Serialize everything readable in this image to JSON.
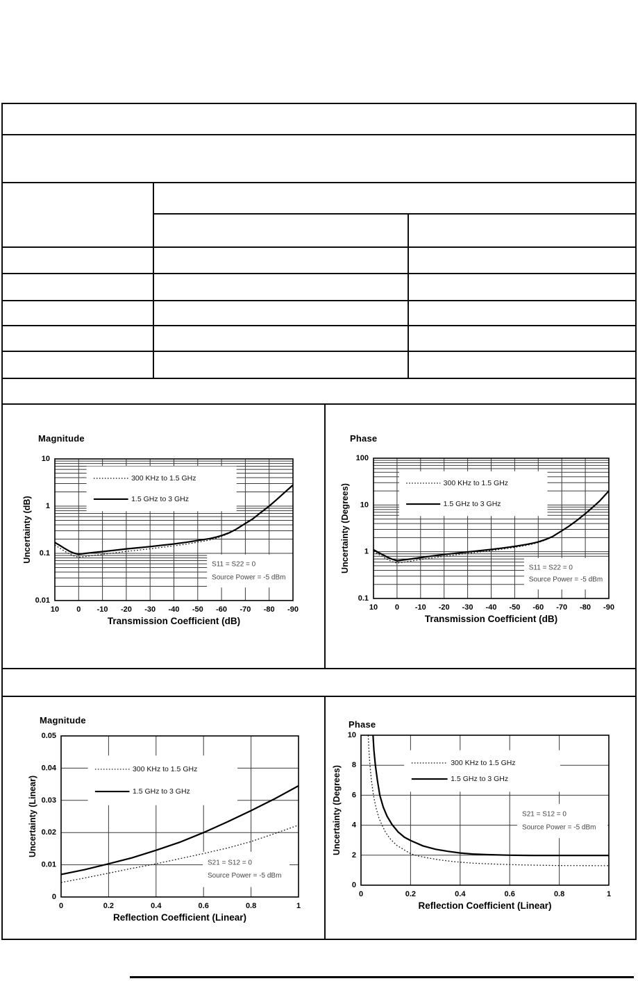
{
  "page": {
    "background": "#ffffff",
    "ink_color": "#000000",
    "grid_color": "#3a3a3a",
    "annotation_color": "#454545"
  },
  "table": {
    "description": "bordered specification table at top of page, all cells blank",
    "all_cells_blank": true,
    "border_color": "#0d0d0d"
  },
  "chart_data": [
    {
      "type": "line",
      "name": "transmission-magnitude",
      "title": "Magnitude",
      "xlabel": "Transmission Coefficient (dB)",
      "ylabel": "Uncertainty (dB)",
      "xscale": "linear",
      "yscale": "log",
      "xlim": [
        10,
        -90
      ],
      "ylim": [
        0.01,
        10
      ],
      "xticks": [
        10,
        0,
        -10,
        -20,
        -30,
        -40,
        -50,
        -60,
        -70,
        -80,
        -90
      ],
      "xtick_labels": [
        "10",
        "0",
        "-10",
        "-20",
        "-30",
        "-40",
        "-50",
        "-60",
        "-70",
        "-80",
        "-90"
      ],
      "yticks": [
        0.01,
        0.1,
        1,
        10
      ],
      "ytick_labels": [
        "0.01",
        "0.1",
        "1",
        "10"
      ],
      "grid": true,
      "legend": {
        "x": 0.163,
        "y1": 0.137,
        "y2": 0.284,
        "position": "upper left"
      },
      "annotation": {
        "lines": [
          "S11 = S22 = 0",
          "Source Power = -5 dBm"
        ],
        "x": 0.659,
        "y1": 0.745,
        "y2": 0.838
      },
      "series": [
        {
          "name": "300 KHz to 1.5 GHz",
          "style": "dotted",
          "x": [
            10,
            8,
            6,
            4,
            2,
            0,
            -3,
            -6,
            -10,
            -15,
            -20,
            -25,
            -30,
            -35,
            -40,
            -45,
            -50,
            -55,
            -58,
            -60,
            -63,
            -66,
            -70,
            -73,
            -76,
            -80,
            -83,
            -86,
            -90
          ],
          "y": [
            0.15,
            0.13,
            0.112,
            0.098,
            0.088,
            0.083,
            0.086,
            0.09,
            0.095,
            0.102,
            0.11,
            0.117,
            0.125,
            0.134,
            0.144,
            0.156,
            0.172,
            0.191,
            0.21,
            0.228,
            0.263,
            0.315,
            0.425,
            0.528,
            0.7,
            1.0,
            1.35,
            1.85,
            2.8
          ]
        },
        {
          "name": "1.5 GHz to 3 GHz",
          "style": "solid",
          "x": [
            10,
            8,
            6,
            4,
            2,
            0,
            -3,
            -6,
            -10,
            -15,
            -20,
            -25,
            -30,
            -35,
            -40,
            -45,
            -50,
            -55,
            -58,
            -60,
            -63,
            -66,
            -70,
            -73,
            -76,
            -80,
            -83,
            -86,
            -90
          ],
          "y": [
            0.17,
            0.148,
            0.128,
            0.112,
            0.101,
            0.096,
            0.1,
            0.104,
            0.109,
            0.116,
            0.124,
            0.131,
            0.139,
            0.148,
            0.158,
            0.171,
            0.187,
            0.205,
            0.222,
            0.238,
            0.27,
            0.32,
            0.43,
            0.53,
            0.7,
            1.0,
            1.35,
            1.85,
            2.8
          ]
        }
      ]
    },
    {
      "type": "line",
      "name": "transmission-phase",
      "title": "Phase",
      "xlabel": "Transmission Coefficient (dB)",
      "ylabel": "Uncertainty (Degrees)",
      "xscale": "linear",
      "yscale": "log",
      "xlim": [
        10,
        -90
      ],
      "ylim": [
        0.1,
        100
      ],
      "xticks": [
        10,
        0,
        -10,
        -20,
        -30,
        -40,
        -50,
        -60,
        -70,
        -80,
        -90
      ],
      "xtick_labels": [
        "10",
        "0",
        "-10",
        "-20",
        "-30",
        "-40",
        "-50",
        "-60",
        "-70",
        "-80",
        "-90"
      ],
      "yticks": [
        0.1,
        1,
        10,
        100
      ],
      "ytick_labels": [
        "0.1",
        "1",
        "10",
        "100"
      ],
      "grid": true,
      "legend": {
        "x": 0.139,
        "y1": 0.178,
        "y2": 0.327,
        "position": "upper left"
      },
      "annotation": {
        "lines": [
          "S11 = S22 = 0",
          "Source Power = -5 dBm"
        ],
        "x": 0.66,
        "y1": 0.782,
        "y2": 0.866
      },
      "series": [
        {
          "name": "300 KHz to 1.5 GHz",
          "style": "dotted",
          "x": [
            10,
            8,
            6,
            4,
            2,
            0,
            -3,
            -6,
            -10,
            -15,
            -20,
            -25,
            -30,
            -35,
            -40,
            -45,
            -50,
            -55,
            -58,
            -60,
            -63,
            -66,
            -70,
            -73,
            -76,
            -80,
            -83,
            -86,
            -90
          ],
          "y": [
            1.02,
            0.89,
            0.78,
            0.68,
            0.61,
            0.57,
            0.6,
            0.63,
            0.68,
            0.74,
            0.8,
            0.86,
            0.92,
            0.99,
            1.06,
            1.14,
            1.24,
            1.37,
            1.47,
            1.57,
            1.78,
            2.06,
            2.77,
            3.47,
            4.48,
            6.5,
            8.8,
            12.0,
            20.0
          ]
        },
        {
          "name": "1.5 GHz to 3 GHz",
          "style": "solid",
          "x": [
            10,
            8,
            6,
            4,
            2,
            0,
            -3,
            -6,
            -10,
            -15,
            -20,
            -25,
            -30,
            -35,
            -40,
            -45,
            -50,
            -55,
            -58,
            -60,
            -63,
            -66,
            -70,
            -73,
            -76,
            -80,
            -83,
            -86,
            -90
          ],
          "y": [
            1.1,
            0.97,
            0.86,
            0.76,
            0.69,
            0.64,
            0.67,
            0.7,
            0.75,
            0.81,
            0.87,
            0.93,
            0.99,
            1.05,
            1.12,
            1.2,
            1.3,
            1.43,
            1.53,
            1.62,
            1.82,
            2.1,
            2.8,
            3.5,
            4.5,
            6.5,
            8.8,
            12.0,
            20.0
          ]
        }
      ]
    },
    {
      "type": "line",
      "name": "reflection-magnitude",
      "title": "Magnitude",
      "xlabel": "Reflection Coefficient (Linear)",
      "ylabel": "Uncertainty (Linear)",
      "xscale": "linear",
      "yscale": "linear",
      "xlim": [
        0,
        1
      ],
      "ylim": [
        0,
        0.05
      ],
      "xticks": [
        0,
        0.2,
        0.4,
        0.6,
        0.8,
        1
      ],
      "xtick_labels": [
        "0",
        "0.2",
        "0.4",
        "0.6",
        "0.8",
        "1"
      ],
      "yticks": [
        0,
        0.01,
        0.02,
        0.03,
        0.04,
        0.05
      ],
      "ytick_labels": [
        "0",
        "0.01",
        "0.02",
        "0.03",
        "0.04",
        "0.05"
      ],
      "grid": true,
      "legend": {
        "x": 0.143,
        "y1": 0.207,
        "y2": 0.345,
        "position": "upper left"
      },
      "annotation": {
        "lines": [
          "S21 = S12 = 0",
          "Source Power = -5 dBm"
        ],
        "x": 0.617,
        "y1": 0.789,
        "y2": 0.868
      },
      "series": [
        {
          "name": "300 KHz to 1.5 GHz",
          "style": "dotted",
          "x": [
            0,
            0.1,
            0.2,
            0.3,
            0.4,
            0.5,
            0.6,
            0.7,
            0.8,
            0.9,
            1.0
          ],
          "y": [
            0.0045,
            0.0059,
            0.0074,
            0.0089,
            0.0103,
            0.0119,
            0.0135,
            0.0152,
            0.0172,
            0.0197,
            0.0223
          ]
        },
        {
          "name": "1.5 GHz to 3 GHz",
          "style": "solid",
          "x": [
            0,
            0.1,
            0.2,
            0.3,
            0.4,
            0.5,
            0.6,
            0.7,
            0.8,
            0.9,
            1.0
          ],
          "y": [
            0.007,
            0.0085,
            0.0103,
            0.0122,
            0.0145,
            0.017,
            0.02,
            0.0233,
            0.0268,
            0.0305,
            0.0345
          ]
        }
      ]
    },
    {
      "type": "line",
      "name": "reflection-phase",
      "title": "Phase",
      "xlabel": "Reflection Coefficient (Linear)",
      "ylabel": "Uncertainty (Degrees)",
      "xscale": "linear",
      "yscale": "linear",
      "xlim": [
        0,
        1
      ],
      "ylim": [
        0,
        10
      ],
      "xticks": [
        0,
        0.2,
        0.4,
        0.6,
        0.8,
        1
      ],
      "xtick_labels": [
        "0",
        "0.2",
        "0.4",
        "0.6",
        "0.8",
        "1"
      ],
      "yticks": [
        0,
        2,
        4,
        6,
        8,
        10
      ],
      "ytick_labels": [
        "0",
        "2",
        "4",
        "6",
        "8",
        "10"
      ],
      "grid": true,
      "legend": {
        "x": 0.204,
        "y1": 0.185,
        "y2": 0.292,
        "position": "upper left"
      },
      "annotation": {
        "lines": [
          "S21 = S12 = 0",
          "Source Power = -5 dBm"
        ],
        "x": 0.65,
        "y1": 0.528,
        "y2": 0.616
      },
      "series": [
        {
          "name": "300 KHz to 1.5 GHz",
          "style": "dotted",
          "x": [
            0.028,
            0.032,
            0.036,
            0.042,
            0.05,
            0.06,
            0.072,
            0.085,
            0.1,
            0.12,
            0.145,
            0.17,
            0.2,
            0.23,
            0.27,
            0.32,
            0.38,
            0.45,
            0.55,
            0.65,
            0.8,
            1.0
          ],
          "y": [
            10.4,
            9.0,
            8.0,
            7.0,
            6.0,
            5.2,
            4.5,
            4.0,
            3.5,
            3.05,
            2.65,
            2.4,
            2.1,
            1.95,
            1.82,
            1.68,
            1.56,
            1.47,
            1.4,
            1.35,
            1.31,
            1.3
          ]
        },
        {
          "name": "1.5 GHz to 3 GHz",
          "style": "solid",
          "x": [
            0.047,
            0.052,
            0.058,
            0.066,
            0.076,
            0.09,
            0.105,
            0.125,
            0.15,
            0.175,
            0.2,
            0.25,
            0.3,
            0.35,
            0.4,
            0.45,
            0.5,
            0.6,
            0.7,
            0.8,
            0.9,
            1.0
          ],
          "y": [
            10.4,
            9.0,
            8.0,
            7.0,
            6.0,
            5.2,
            4.6,
            4.05,
            3.55,
            3.2,
            2.98,
            2.62,
            2.4,
            2.26,
            2.15,
            2.08,
            2.04,
            2.0,
            1.98,
            1.98,
            1.98,
            1.98
          ]
        }
      ]
    }
  ]
}
